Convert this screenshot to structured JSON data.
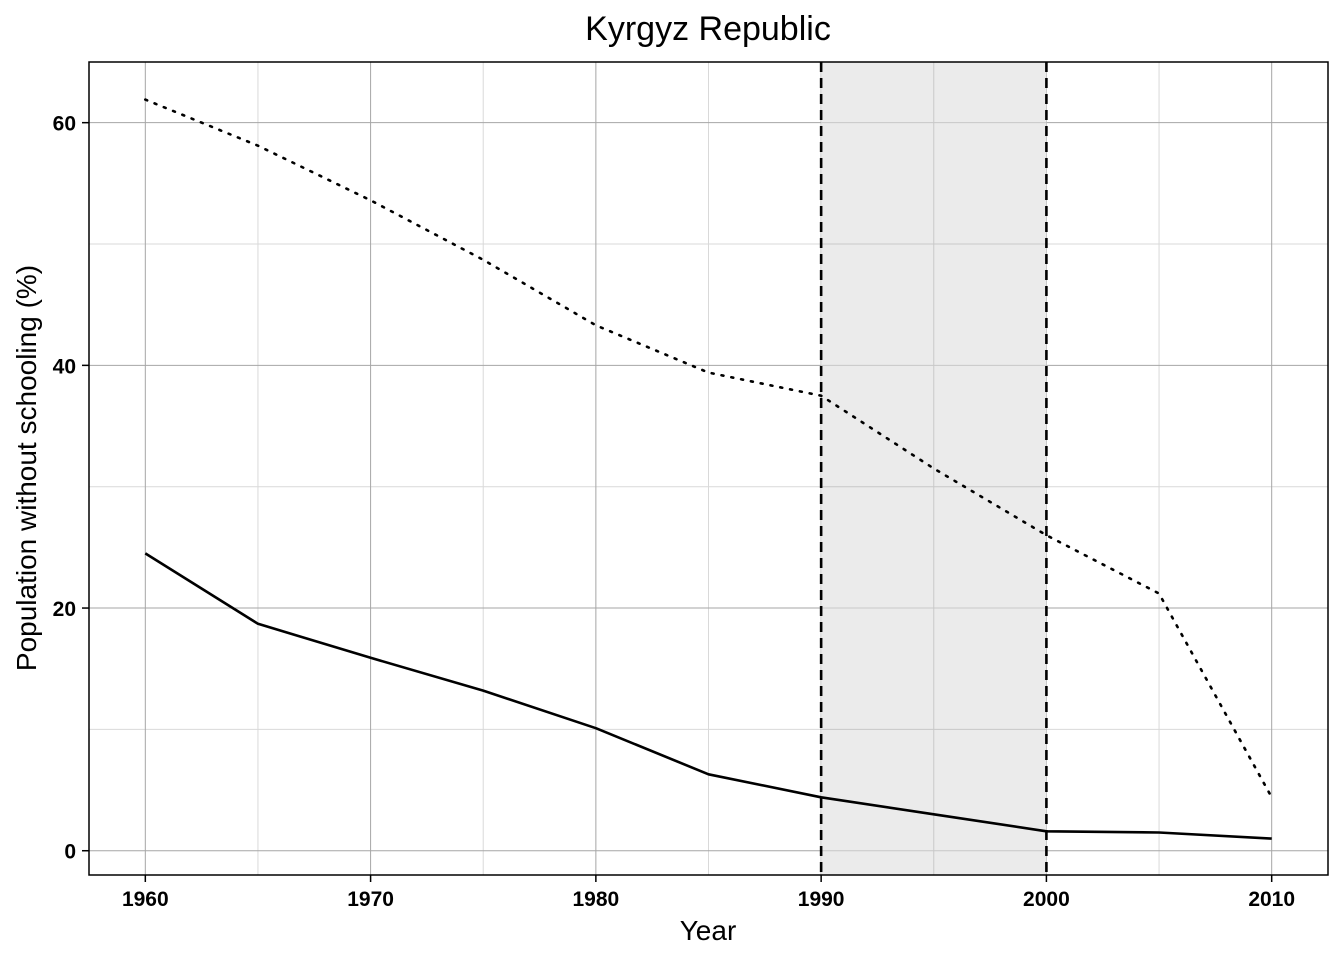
{
  "chart_data": {
    "type": "line",
    "title": "Kyrgyz Republic",
    "xlabel": "Year",
    "ylabel": "Population without schooling (%)",
    "xlim": [
      1957.5,
      2012.5
    ],
    "ylim": [
      -2,
      65
    ],
    "x_ticks": [
      1960,
      1970,
      1980,
      1990,
      2000,
      2010
    ],
    "y_ticks": [
      0,
      20,
      40,
      60
    ],
    "grid": true,
    "shaded_region": {
      "x_start": 1990,
      "x_end": 2000,
      "color": "#ebebeb"
    },
    "series": [
      {
        "style": "solid",
        "color": "#000000",
        "x": [
          1960,
          1965,
          1970,
          1975,
          1980,
          1985,
          1990,
          1995,
          2000,
          2005,
          2010
        ],
        "values": [
          24.5,
          18.7,
          15.9,
          13.2,
          10.1,
          6.3,
          4.4,
          3.0,
          1.6,
          1.5,
          1.0
        ]
      },
      {
        "style": "dotted",
        "color": "#000000",
        "x": [
          1960,
          1965,
          1970,
          1975,
          1980,
          1985,
          1990,
          1995,
          2000,
          2005,
          2010
        ],
        "values": [
          61.9,
          58.1,
          53.6,
          48.7,
          43.3,
          39.4,
          37.5,
          31.5,
          26.0,
          21.2,
          4.4
        ]
      }
    ]
  }
}
